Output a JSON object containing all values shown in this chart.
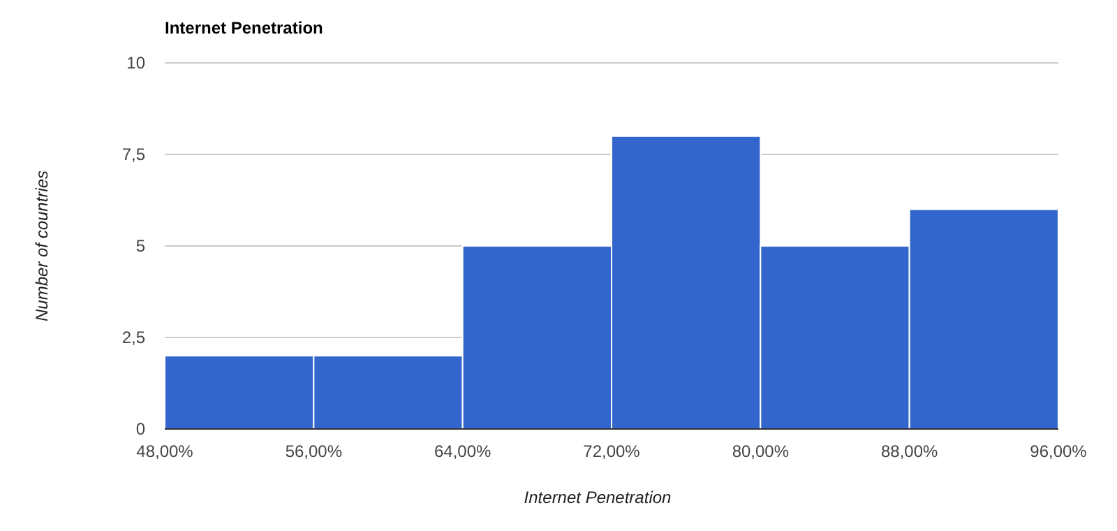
{
  "chart_data": {
    "type": "histogram",
    "title": "Internet Penetration",
    "xlabel": "Internet Penetration",
    "ylabel": "Number of countries",
    "bins": [
      48,
      56,
      64,
      72,
      80,
      88,
      96
    ],
    "values": [
      2,
      2,
      5,
      8,
      5,
      6
    ],
    "color": "#3366cc",
    "xlim": [
      48,
      96
    ],
    "xticks": [
      {
        "value": 48,
        "label": "48,00%"
      },
      {
        "value": 56,
        "label": "56,00%"
      },
      {
        "value": 64,
        "label": "64,00%"
      },
      {
        "value": 72,
        "label": "72,00%"
      },
      {
        "value": 80,
        "label": "80,00%"
      },
      {
        "value": 88,
        "label": "88,00%"
      },
      {
        "value": 96,
        "label": "96,00%"
      }
    ],
    "ylim": [
      0,
      10
    ],
    "yticks": [
      0,
      {
        "value": 2.5,
        "label": "2,5"
      },
      5,
      {
        "value": 7.5,
        "label": "7,5"
      },
      10
    ],
    "grid": "y"
  }
}
